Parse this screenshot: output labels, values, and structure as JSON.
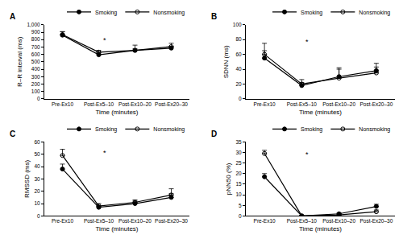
{
  "chart_data": [
    {
      "type": "line",
      "title": "A",
      "categories": [
        "Pre-Ex10",
        "Post-Ex5–10",
        "Post-Ex10–20",
        "Post-Ex20–30"
      ],
      "series": [
        {
          "name": "Smoking",
          "color": "#000000",
          "marker": "circle",
          "values": [
            860,
            595,
            655,
            685
          ],
          "error": [
            45,
            20,
            20,
            20
          ]
        },
        {
          "name": "Nonsmoking",
          "color": "#000000",
          "marker": "circle-open",
          "values": [
            868,
            630,
            655,
            705
          ],
          "error": [
            40,
            25,
            70,
            45
          ]
        }
      ],
      "xlabel": "Time (minutes)",
      "ylabel": "R–R interval (ms)",
      "ylim": [
        0,
        1000
      ],
      "yticks": [
        0,
        100,
        200,
        300,
        400,
        500,
        600,
        700,
        800,
        900,
        {
          "value": 1000,
          "label": "1,000"
        }
      ],
      "annotations": [
        {
          "text": "*",
          "x": "Post-Ex5–10",
          "y": 790
        }
      ],
      "grid": false,
      "legend": "top right"
    },
    {
      "type": "line",
      "title": "B",
      "categories": [
        "Pre-Ex10",
        "Post-Ex5–10",
        "Post-Ex10–20",
        "Post-Ex20–30"
      ],
      "series": [
        {
          "name": "Smoking",
          "color": "#000000",
          "marker": "circle",
          "values": [
            55,
            18,
            30,
            38
          ],
          "error": [
            10,
            4,
            10,
            10
          ]
        },
        {
          "name": "Nonsmoking",
          "color": "#000000",
          "marker": "circle-open",
          "values": [
            60,
            20,
            28,
            35
          ],
          "error": [
            15,
            6,
            14,
            8
          ]
        }
      ],
      "xlabel": "Time (minutes)",
      "ylabel": "SDNN (ms)",
      "ylim": [
        0,
        100
      ],
      "yticks": [
        0,
        20,
        40,
        60,
        80,
        100
      ],
      "annotations": [
        {
          "text": "*",
          "x": "Post-Ex5–10",
          "y": 77
        }
      ],
      "grid": false,
      "legend": "top right"
    },
    {
      "type": "line",
      "title": "C",
      "categories": [
        "Pre-Ex10",
        "Post-Ex5–10",
        "Post-Ex10–20",
        "Post-Ex20–30"
      ],
      "series": [
        {
          "name": "Smoking",
          "color": "#000000",
          "marker": "circle",
          "values": [
            38,
            7,
            10,
            15
          ],
          "error": [
            4,
            1,
            2,
            3
          ]
        },
        {
          "name": "Nonsmoking",
          "color": "#000000",
          "marker": "circle-open",
          "values": [
            49,
            8,
            11,
            17
          ],
          "error": [
            5,
            2,
            2,
            5
          ]
        }
      ],
      "xlabel": "Time (minutes)",
      "ylabel": "RMSSD (ms)",
      "ylim": [
        0,
        60
      ],
      "yticks": [
        0,
        10,
        20,
        30,
        40,
        50,
        60
      ],
      "annotations": [
        {
          "text": "*",
          "x": "Post-Ex5–10",
          "y": 51
        }
      ],
      "grid": false,
      "legend": "top right"
    },
    {
      "type": "line",
      "title": "D",
      "categories": [
        "Pre-Ex10",
        "Post-Ex5–10",
        "Post-Ex10–20",
        "Post-Ex20–30"
      ],
      "series": [
        {
          "name": "Smoking",
          "color": "#000000",
          "marker": "circle",
          "values": [
            18.5,
            0,
            1,
            4.5
          ],
          "error": [
            1.5,
            0.2,
            0.5,
            1
          ]
        },
        {
          "name": "Nonsmoking",
          "color": "#000000",
          "marker": "circle-open",
          "values": [
            29.5,
            0,
            0.5,
            2
          ],
          "error": [
            1.5,
            0.2,
            0.3,
            0.8
          ]
        }
      ],
      "xlabel": "Time (minutes)",
      "ylabel": "pNN50 (%)",
      "ylim": [
        0,
        35
      ],
      "yticks": [
        0,
        5,
        10,
        15,
        20,
        25,
        30,
        35
      ],
      "annotations": [
        {
          "text": "*",
          "x": "Post-Ex5–10",
          "y": 29
        }
      ],
      "grid": false,
      "legend": "top right"
    }
  ]
}
